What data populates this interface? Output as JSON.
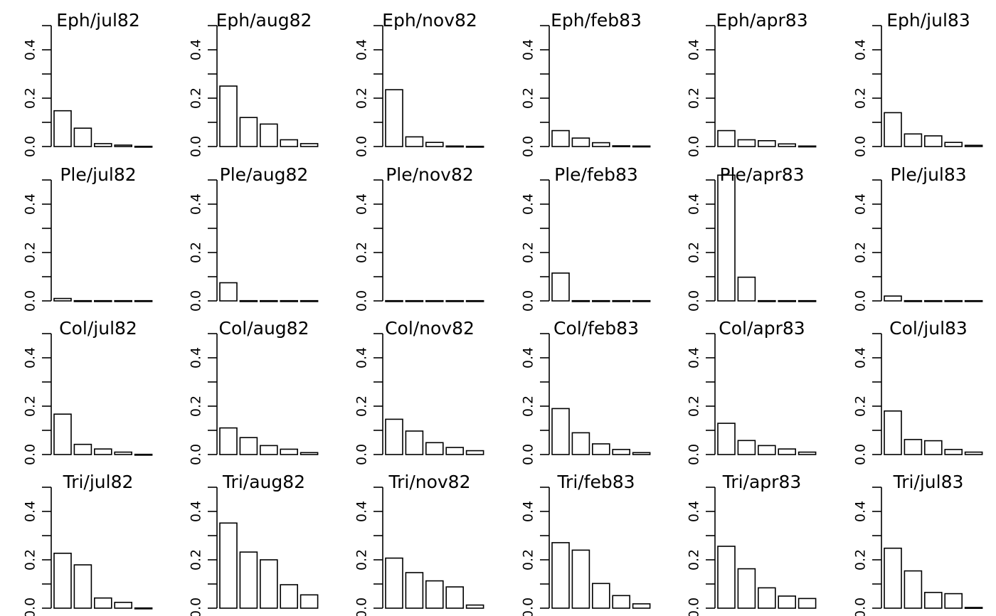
{
  "chart_data": [
    {
      "type": "bar",
      "title": "Eph/jul82",
      "values": [
        0.148,
        0.076,
        0.012,
        0.006,
        0.001
      ],
      "ylim": [
        0,
        0.5
      ],
      "yticks": [
        "0.0",
        "0.2",
        "0.4"
      ]
    },
    {
      "type": "bar",
      "title": "Eph/aug82",
      "values": [
        0.25,
        0.12,
        0.093,
        0.028,
        0.012
      ],
      "ylim": [
        0,
        0.5
      ],
      "yticks": [
        "0.0",
        "0.2",
        "0.4"
      ]
    },
    {
      "type": "bar",
      "title": "Eph/nov82",
      "values": [
        0.235,
        0.04,
        0.017,
        0.002,
        0.001
      ],
      "ylim": [
        0,
        0.5
      ],
      "yticks": [
        "0.0",
        "0.2",
        "0.4"
      ]
    },
    {
      "type": "bar",
      "title": "Eph/feb83",
      "values": [
        0.066,
        0.035,
        0.016,
        0.003,
        0.002
      ],
      "ylim": [
        0,
        0.5
      ],
      "yticks": [
        "0.0",
        "0.2",
        "0.4"
      ]
    },
    {
      "type": "bar",
      "title": "Eph/apr83",
      "values": [
        0.066,
        0.028,
        0.024,
        0.011,
        0.002
      ],
      "ylim": [
        0,
        0.5
      ],
      "yticks": [
        "0.0",
        "0.2",
        "0.4"
      ]
    },
    {
      "type": "bar",
      "title": "Eph/jul83",
      "values": [
        0.14,
        0.052,
        0.044,
        0.017,
        0.005
      ],
      "ylim": [
        0,
        0.5
      ],
      "yticks": [
        "0.0",
        "0.2",
        "0.4"
      ]
    },
    {
      "type": "bar",
      "title": "Ple/jul82",
      "values": [
        0.01,
        0.001,
        0.001,
        0.001,
        0.001
      ],
      "ylim": [
        0,
        0.5
      ],
      "yticks": [
        "0.0",
        "0.2",
        "0.4"
      ]
    },
    {
      "type": "bar",
      "title": "Ple/aug82",
      "values": [
        0.075,
        0.001,
        0.001,
        0.001,
        0.001
      ],
      "ylim": [
        0,
        0.5
      ],
      "yticks": [
        "0.0",
        "0.2",
        "0.4"
      ]
    },
    {
      "type": "bar",
      "title": "Ple/nov82",
      "values": [
        0.001,
        0.001,
        0.001,
        0.001,
        0.001
      ],
      "ylim": [
        0,
        0.5
      ],
      "yticks": [
        "0.0",
        "0.2",
        "0.4"
      ]
    },
    {
      "type": "bar",
      "title": "Ple/feb83",
      "values": [
        0.115,
        0.001,
        0.001,
        0.001,
        0.001
      ],
      "ylim": [
        0,
        0.5
      ],
      "yticks": [
        "0.0",
        "0.2",
        "0.4"
      ]
    },
    {
      "type": "bar",
      "title": "Ple/apr83",
      "values": [
        0.52,
        0.098,
        0.001,
        0.001,
        0.001
      ],
      "ylim": [
        0,
        0.5
      ],
      "yticks": [
        "0.0",
        "0.2",
        "0.4"
      ]
    },
    {
      "type": "bar",
      "title": "Ple/jul83",
      "values": [
        0.02,
        0.001,
        0.001,
        0.001,
        0.001
      ],
      "ylim": [
        0,
        0.5
      ],
      "yticks": [
        "0.0",
        "0.2",
        "0.4"
      ]
    },
    {
      "type": "bar",
      "title": "Col/jul82",
      "values": [
        0.167,
        0.042,
        0.023,
        0.01,
        0.001
      ],
      "ylim": [
        0,
        0.5
      ],
      "yticks": [
        "0.0",
        "0.2",
        "0.4"
      ]
    },
    {
      "type": "bar",
      "title": "Col/aug82",
      "values": [
        0.11,
        0.07,
        0.037,
        0.022,
        0.008
      ],
      "ylim": [
        0,
        0.5
      ],
      "yticks": [
        "0.0",
        "0.2",
        "0.4"
      ]
    },
    {
      "type": "bar",
      "title": "Col/nov82",
      "values": [
        0.146,
        0.097,
        0.049,
        0.029,
        0.016
      ],
      "ylim": [
        0,
        0.5
      ],
      "yticks": [
        "0.0",
        "0.2",
        "0.4"
      ]
    },
    {
      "type": "bar",
      "title": "Col/feb83",
      "values": [
        0.19,
        0.09,
        0.044,
        0.021,
        0.008
      ],
      "ylim": [
        0,
        0.5
      ],
      "yticks": [
        "0.0",
        "0.2",
        "0.4"
      ]
    },
    {
      "type": "bar",
      "title": "Col/apr83",
      "values": [
        0.129,
        0.058,
        0.037,
        0.023,
        0.01
      ],
      "ylim": [
        0,
        0.5
      ],
      "yticks": [
        "0.0",
        "0.2",
        "0.4"
      ]
    },
    {
      "type": "bar",
      "title": "Col/jul83",
      "values": [
        0.18,
        0.062,
        0.057,
        0.021,
        0.01
      ],
      "ylim": [
        0,
        0.5
      ],
      "yticks": [
        "0.0",
        "0.2",
        "0.4"
      ]
    },
    {
      "type": "bar",
      "title": "Tri/jul82",
      "values": [
        0.227,
        0.179,
        0.042,
        0.024,
        0.001
      ],
      "ylim": [
        0,
        0.5
      ],
      "yticks": [
        "0.0",
        "0.2",
        "0.4"
      ]
    },
    {
      "type": "bar",
      "title": "Tri/aug82",
      "values": [
        0.352,
        0.232,
        0.2,
        0.097,
        0.055
      ],
      "ylim": [
        0,
        0.5
      ],
      "yticks": [
        "0.0",
        "0.2",
        "0.4"
      ]
    },
    {
      "type": "bar",
      "title": "Tri/nov82",
      "values": [
        0.207,
        0.147,
        0.113,
        0.088,
        0.013
      ],
      "ylim": [
        0,
        0.5
      ],
      "yticks": [
        "0.0",
        "0.2",
        "0.4"
      ]
    },
    {
      "type": "bar",
      "title": "Tri/feb83",
      "values": [
        0.271,
        0.24,
        0.102,
        0.052,
        0.018
      ],
      "ylim": [
        0,
        0.5
      ],
      "yticks": [
        "0.0",
        "0.2",
        "0.4"
      ]
    },
    {
      "type": "bar",
      "title": "Tri/apr83",
      "values": [
        0.256,
        0.163,
        0.084,
        0.05,
        0.04
      ],
      "ylim": [
        0,
        0.5
      ],
      "yticks": [
        "0.0",
        "0.2",
        "0.4"
      ]
    },
    {
      "type": "bar",
      "title": "Tri/jul83",
      "values": [
        0.248,
        0.154,
        0.065,
        0.06,
        0.003
      ],
      "ylim": [
        0,
        0.5
      ],
      "yticks": [
        "0.0",
        "0.2",
        "0.4"
      ]
    }
  ]
}
